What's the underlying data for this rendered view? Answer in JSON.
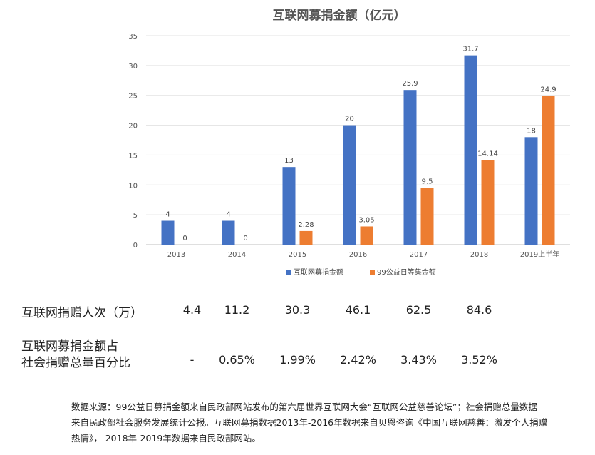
{
  "chart_data": {
    "type": "bar",
    "title": "互联网募捐金额（亿元）",
    "xlabel": "",
    "ylabel": "",
    "ylim": [
      0,
      35
    ],
    "yticks": [
      0,
      5,
      10,
      15,
      20,
      25,
      30,
      35
    ],
    "grid": true,
    "legend_position": "bottom",
    "categories": [
      "2013",
      "2014",
      "2015",
      "2016",
      "2017",
      "2018",
      "2019上半年"
    ],
    "series": [
      {
        "name": "互联网募捐金额",
        "color": "#4472C4",
        "values": [
          4,
          4,
          13,
          20,
          25.9,
          31.7,
          18
        ],
        "labels": [
          "4",
          "4",
          "13",
          "20",
          "25.9",
          "31.7",
          "18"
        ]
      },
      {
        "name": "99公益日等集金额",
        "color": "#ED7D31",
        "values": [
          0,
          0,
          2.28,
          3.05,
          9.5,
          14.14,
          24.9
        ],
        "labels": [
          "0",
          "0",
          "2.28",
          "3.05",
          "9.5",
          "14.14",
          "24.9"
        ]
      }
    ]
  },
  "table": {
    "donors_label": "互联网捐赠人次（万）",
    "donors_values": [
      "4.4",
      "11.2",
      "30.3",
      "46.1",
      "62.5",
      "84.6"
    ],
    "share_label_line1": "互联网募捐金额占",
    "share_label_line2": "社会捐赠总量百分比",
    "share_values": [
      "-",
      "0.65%",
      "1.99%",
      "2.42%",
      "3.43%",
      "3.52%"
    ]
  },
  "source": {
    "line1": "数据来源：99公益日募捐金额来自民政部网站发布的第六届世界互联网大会“互联网公益慈善论坛”；社会捐赠总量数据",
    "line2": "来自民政部社会服务发展统计公报。互联网募捐数据2013年-2016年数据来自贝恩咨询《中国互联网慈善：激发个人捐赠",
    "line3": "热情》， 2018年-2019年数据来自民政部网站。"
  }
}
